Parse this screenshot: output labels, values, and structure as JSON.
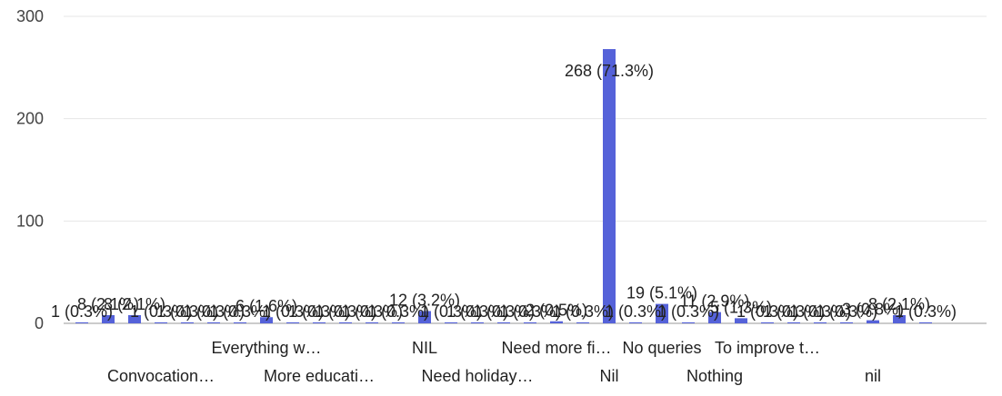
{
  "chart_data": {
    "type": "bar",
    "title": "",
    "xlabel": "",
    "ylabel": "",
    "ylim": [
      0,
      300
    ],
    "yticks": [
      0,
      100,
      200,
      300
    ],
    "grid": true,
    "legend": "none",
    "bar_color": "#5562d9",
    "visible_category_labels": [
      "Everything w…",
      "NIL",
      "Need more fi…",
      "No queries",
      "To improve t…",
      "Convocation…",
      "More educati…",
      "Need holiday…",
      "Nil",
      "Nothing",
      "nil"
    ],
    "categories": [
      "c01",
      "c02",
      "c03",
      "Convocation…",
      "c05",
      "c06",
      "c07",
      "Everything w…",
      "c09",
      "More educati…",
      "c11",
      "c12",
      "c13",
      "NIL",
      "c15",
      "Need holiday…",
      "c17",
      "c18",
      "Need more fi…",
      "c20",
      "Nil",
      "c22",
      "No queries",
      "c24",
      "Nothing",
      "c26",
      "To improve t…",
      "c28",
      "c29",
      "c30",
      "nil",
      "c32",
      "c33"
    ],
    "values": [
      1,
      8,
      8,
      1,
      1,
      1,
      1,
      6,
      1,
      1,
      1,
      1,
      1,
      12,
      1,
      1,
      1,
      1,
      2,
      1,
      268,
      1,
      19,
      1,
      11,
      5,
      1,
      1,
      1,
      1,
      3,
      8,
      1
    ],
    "data_labels": [
      "1 (0.3%)",
      "8 (2.1%)",
      "8 (2.1%)",
      "1 (0.3%)",
      "1 (0.3%)",
      "1 (0.3%)",
      "1 (0.3%)",
      "6 (1.6%)",
      "1 (0.3%)",
      "1 (0.3%)",
      "1 (0.3%)",
      "1 (0.3%)",
      "1 (0.3%)",
      "12 (3.2%)",
      "1 (0.3%)",
      "1 (0.3%)",
      "1 (0.3%)",
      "1 (0.3%)",
      "2 (0.5%)",
      "1 (0.3%)",
      "268 (71.3%)",
      "1 (0.3%)",
      "19 (5.1%)",
      "1 (0.3%)",
      "11 (2.9%)",
      "5 (1.3%)",
      "1 (0.3%)",
      "1 (0.3%)",
      "1 (0.3%)",
      "1 (0.3%)",
      "3 (0.8%)",
      "8 (2.1%)",
      "1 (0.3%)"
    ]
  }
}
